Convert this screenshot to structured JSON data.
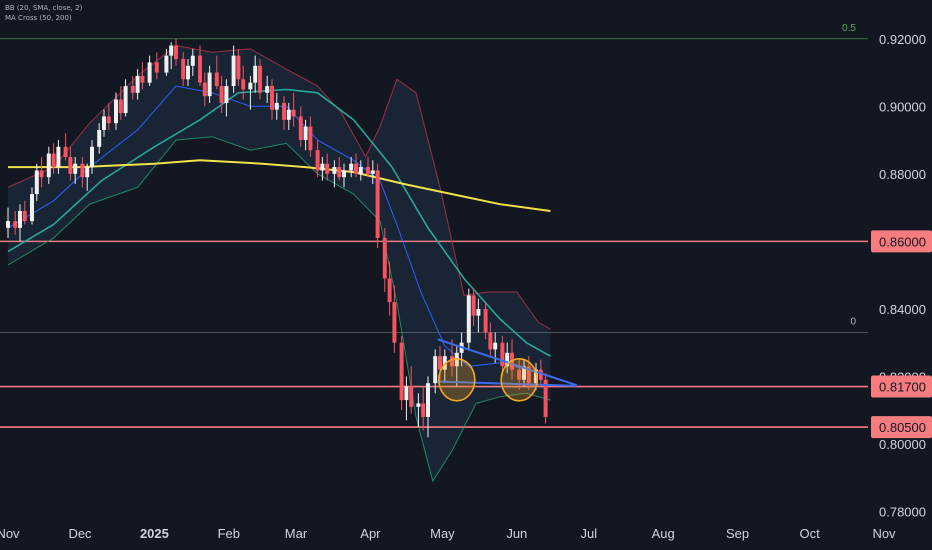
{
  "legend": {
    "indicator_bb": "BB (20, SMA, close, 2)",
    "indicator_ma": "MA Cross (50, 200)"
  },
  "colors": {
    "background": "#131722",
    "up_candle": "#f0f0f0",
    "down_candle": "#f7525f",
    "bb_band": "#9c2f44",
    "bb_basis": "#2962ff",
    "ma50": "#26a69a",
    "ma200": "#f2e24a",
    "trendline": "#3b6cf0",
    "level_line": "#f77c80",
    "fib_line": "#4caf50",
    "circle": "#f5a623",
    "axis_text": "#d1d4dc"
  },
  "chart_data": {
    "type": "candlestick",
    "symbol_note": "",
    "x_axis": {
      "labels": [
        "Nov",
        "Dec",
        "2025",
        "Feb",
        "Mar",
        "Apr",
        "May",
        "Jun",
        "Jul",
        "Aug",
        "Sep",
        "Oct",
        "Nov"
      ],
      "start": "2024-11-01",
      "end": "2025-11-01"
    },
    "y_axis": {
      "ticks": [
        0.78,
        0.8,
        0.82,
        0.84,
        0.86,
        0.88,
        0.9,
        0.92
      ],
      "tick_labels": [
        "0.78000",
        "0.80000",
        "0.82000",
        "0.84000",
        "0.86000",
        "0.88000",
        "0.90000",
        "0.92000"
      ],
      "range": [
        0.776,
        0.93
      ]
    },
    "horizontal_levels": [
      {
        "label": "0.86000",
        "value": 0.86,
        "style": "highlight"
      },
      {
        "label": "0.81700",
        "value": 0.817,
        "style": "highlight"
      },
      {
        "label": "0.80500",
        "value": 0.805,
        "style": "highlight"
      }
    ],
    "fib_levels": [
      {
        "label": "0.5",
        "value": 0.92
      },
      {
        "label": "0",
        "value": 0.833
      }
    ],
    "trendlines": [
      {
        "from": [
          "2025-04-29",
          0.831
        ],
        "to": [
          "2025-06-26",
          0.8174
        ]
      },
      {
        "from": [
          "2025-04-29",
          0.8185
        ],
        "to": [
          "2025-06-26",
          0.8172
        ]
      }
    ],
    "circles": [
      {
        "center": [
          "2025-05-07",
          0.819
        ]
      },
      {
        "center": [
          "2025-06-02",
          0.819
        ]
      }
    ],
    "ma200": [
      [
        "2024-11-01",
        0.882
      ],
      [
        "2024-12-01",
        0.882
      ],
      [
        "2025-01-01",
        0.883
      ],
      [
        "2025-01-20",
        0.884
      ],
      [
        "2025-02-15",
        0.883
      ],
      [
        "2025-03-05",
        0.882
      ],
      [
        "2025-03-25",
        0.8805
      ],
      [
        "2025-04-15",
        0.877
      ],
      [
        "2025-05-05",
        0.874
      ],
      [
        "2025-05-25",
        0.871
      ],
      [
        "2025-06-15",
        0.869
      ]
    ],
    "ma50": [
      [
        "2024-11-01",
        0.857
      ],
      [
        "2024-11-20",
        0.865
      ],
      [
        "2024-12-10",
        0.878
      ],
      [
        "2025-01-01",
        0.888
      ],
      [
        "2025-01-20",
        0.896
      ],
      [
        "2025-02-05",
        0.904
      ],
      [
        "2025-02-25",
        0.905
      ],
      [
        "2025-03-10",
        0.904
      ],
      [
        "2025-03-25",
        0.896
      ],
      [
        "2025-04-10",
        0.882
      ],
      [
        "2025-04-25",
        0.864
      ],
      [
        "2025-05-10",
        0.849
      ],
      [
        "2025-05-25",
        0.837
      ],
      [
        "2025-06-05",
        0.83
      ],
      [
        "2025-06-15",
        0.826
      ]
    ],
    "bb_basis": [
      [
        "2024-11-01",
        0.864
      ],
      [
        "2024-11-20",
        0.872
      ],
      [
        "2024-12-05",
        0.882
      ],
      [
        "2024-12-25",
        0.893
      ],
      [
        "2025-01-10",
        0.906
      ],
      [
        "2025-01-25",
        0.904
      ],
      [
        "2025-02-10",
        0.9
      ],
      [
        "2025-02-25",
        0.9
      ],
      [
        "2025-03-10",
        0.89
      ],
      [
        "2025-03-25",
        0.884
      ],
      [
        "2025-04-05",
        0.878
      ],
      [
        "2025-04-12",
        0.865
      ],
      [
        "2025-04-22",
        0.845
      ],
      [
        "2025-05-02",
        0.829
      ],
      [
        "2025-05-12",
        0.823
      ],
      [
        "2025-05-25",
        0.824
      ],
      [
        "2025-06-05",
        0.822
      ],
      [
        "2025-06-15",
        0.82
      ]
    ],
    "bb_upper": [
      [
        "2024-11-01",
        0.876
      ],
      [
        "2024-11-20",
        0.882
      ],
      [
        "2024-12-05",
        0.895
      ],
      [
        "2024-12-25",
        0.909
      ],
      [
        "2025-01-10",
        0.918
      ],
      [
        "2025-01-25",
        0.916
      ],
      [
        "2025-02-10",
        0.917
      ],
      [
        "2025-02-25",
        0.911
      ],
      [
        "2025-03-10",
        0.906
      ],
      [
        "2025-03-20",
        0.898
      ],
      [
        "2025-03-30",
        0.885
      ],
      [
        "2025-04-05",
        0.894
      ],
      [
        "2025-04-12",
        0.908
      ],
      [
        "2025-04-20",
        0.904
      ],
      [
        "2025-04-30",
        0.876
      ],
      [
        "2025-05-10",
        0.844
      ],
      [
        "2025-05-20",
        0.845
      ],
      [
        "2025-06-01",
        0.845
      ],
      [
        "2025-06-10",
        0.836
      ],
      [
        "2025-06-15",
        0.834
      ]
    ],
    "bb_lower": [
      [
        "2024-11-01",
        0.853
      ],
      [
        "2024-11-20",
        0.861
      ],
      [
        "2024-12-05",
        0.871
      ],
      [
        "2024-12-25",
        0.876
      ],
      [
        "2025-01-10",
        0.89
      ],
      [
        "2025-01-25",
        0.891
      ],
      [
        "2025-02-10",
        0.887
      ],
      [
        "2025-02-25",
        0.889
      ],
      [
        "2025-03-10",
        0.88
      ],
      [
        "2025-03-25",
        0.874
      ],
      [
        "2025-04-05",
        0.866
      ],
      [
        "2025-04-12",
        0.842
      ],
      [
        "2025-04-20",
        0.808
      ],
      [
        "2025-04-27",
        0.789
      ],
      [
        "2025-05-05",
        0.798
      ],
      [
        "2025-05-15",
        0.812
      ],
      [
        "2025-05-25",
        0.814
      ],
      [
        "2025-06-05",
        0.815
      ],
      [
        "2025-06-15",
        0.813
      ]
    ],
    "candles": [
      [
        "2024-11-01",
        0.864,
        0.87,
        0.861,
        0.866
      ],
      [
        "2024-11-04",
        0.866,
        0.869,
        0.862,
        0.864
      ],
      [
        "2024-11-06",
        0.864,
        0.871,
        0.86,
        0.869
      ],
      [
        "2024-11-08",
        0.869,
        0.872,
        0.865,
        0.866
      ],
      [
        "2024-11-11",
        0.866,
        0.876,
        0.865,
        0.874
      ],
      [
        "2024-11-13",
        0.874,
        0.883,
        0.872,
        0.881
      ],
      [
        "2024-11-15",
        0.881,
        0.885,
        0.876,
        0.879
      ],
      [
        "2024-11-18",
        0.879,
        0.888,
        0.877,
        0.886
      ],
      [
        "2024-11-20",
        0.886,
        0.889,
        0.88,
        0.882
      ],
      [
        "2024-11-22",
        0.882,
        0.89,
        0.88,
        0.888
      ],
      [
        "2024-11-25",
        0.888,
        0.892,
        0.884,
        0.885
      ],
      [
        "2024-11-27",
        0.885,
        0.888,
        0.878,
        0.88
      ],
      [
        "2024-11-29",
        0.88,
        0.885,
        0.877,
        0.883
      ],
      [
        "2024-12-02",
        0.883,
        0.885,
        0.876,
        0.879
      ],
      [
        "2024-12-04",
        0.879,
        0.883,
        0.875,
        0.882
      ],
      [
        "2024-12-06",
        0.882,
        0.89,
        0.88,
        0.888
      ],
      [
        "2024-12-09",
        0.888,
        0.895,
        0.886,
        0.893
      ],
      [
        "2024-12-11",
        0.893,
        0.899,
        0.891,
        0.897
      ],
      [
        "2024-12-13",
        0.897,
        0.901,
        0.893,
        0.895
      ],
      [
        "2024-12-16",
        0.895,
        0.904,
        0.893,
        0.902
      ],
      [
        "2024-12-18",
        0.902,
        0.906,
        0.896,
        0.898
      ],
      [
        "2024-12-20",
        0.898,
        0.908,
        0.897,
        0.906
      ],
      [
        "2024-12-23",
        0.906,
        0.909,
        0.902,
        0.904
      ],
      [
        "2024-12-25",
        0.904,
        0.911,
        0.902,
        0.909
      ],
      [
        "2024-12-27",
        0.909,
        0.913,
        0.905,
        0.907
      ],
      [
        "2024-12-30",
        0.907,
        0.915,
        0.906,
        0.913
      ],
      [
        "2025-01-02",
        0.913,
        0.916,
        0.908,
        0.91
      ],
      [
        "2025-01-06",
        0.91,
        0.917,
        0.909,
        0.915
      ],
      [
        "2025-01-08",
        0.915,
        0.919,
        0.911,
        0.918
      ],
      [
        "2025-01-10",
        0.918,
        0.92,
        0.912,
        0.914
      ],
      [
        "2025-01-13",
        0.914,
        0.916,
        0.906,
        0.908
      ],
      [
        "2025-01-15",
        0.908,
        0.914,
        0.906,
        0.912
      ],
      [
        "2025-01-17",
        0.912,
        0.917,
        0.909,
        0.915
      ],
      [
        "2025-01-20",
        0.915,
        0.918,
        0.906,
        0.907
      ],
      [
        "2025-01-22",
        0.907,
        0.91,
        0.9,
        0.903
      ],
      [
        "2025-01-24",
        0.903,
        0.912,
        0.901,
        0.91
      ],
      [
        "2025-01-27",
        0.91,
        0.915,
        0.905,
        0.906
      ],
      [
        "2025-01-29",
        0.906,
        0.909,
        0.898,
        0.901
      ],
      [
        "2025-01-31",
        0.901,
        0.908,
        0.897,
        0.906
      ],
      [
        "2025-02-03",
        0.906,
        0.918,
        0.904,
        0.915
      ],
      [
        "2025-02-05",
        0.915,
        0.917,
        0.906,
        0.908
      ],
      [
        "2025-02-07",
        0.908,
        0.912,
        0.902,
        0.905
      ],
      [
        "2025-02-10",
        0.905,
        0.909,
        0.899,
        0.907
      ],
      [
        "2025-02-12",
        0.907,
        0.915,
        0.904,
        0.912
      ],
      [
        "2025-02-14",
        0.912,
        0.914,
        0.902,
        0.904
      ],
      [
        "2025-02-17",
        0.904,
        0.909,
        0.901,
        0.906
      ],
      [
        "2025-02-19",
        0.906,
        0.908,
        0.896,
        0.899
      ],
      [
        "2025-02-21",
        0.899,
        0.904,
        0.896,
        0.901
      ],
      [
        "2025-02-24",
        0.901,
        0.903,
        0.893,
        0.896
      ],
      [
        "2025-02-26",
        0.896,
        0.901,
        0.893,
        0.899
      ],
      [
        "2025-02-28",
        0.899,
        0.904,
        0.894,
        0.897
      ],
      [
        "2025-03-03",
        0.897,
        0.9,
        0.888,
        0.89
      ],
      [
        "2025-03-05",
        0.89,
        0.896,
        0.887,
        0.894
      ],
      [
        "2025-03-07",
        0.894,
        0.897,
        0.885,
        0.887
      ],
      [
        "2025-03-10",
        0.887,
        0.89,
        0.879,
        0.881
      ],
      [
        "2025-03-12",
        0.881,
        0.885,
        0.878,
        0.883
      ],
      [
        "2025-03-14",
        0.883,
        0.886,
        0.878,
        0.88
      ],
      [
        "2025-03-17",
        0.88,
        0.884,
        0.876,
        0.882
      ],
      [
        "2025-03-19",
        0.882,
        0.885,
        0.878,
        0.879
      ],
      [
        "2025-03-21",
        0.879,
        0.883,
        0.876,
        0.881
      ],
      [
        "2025-03-24",
        0.881,
        0.885,
        0.879,
        0.883
      ],
      [
        "2025-03-26",
        0.883,
        0.886,
        0.879,
        0.88
      ],
      [
        "2025-03-28",
        0.88,
        0.884,
        0.878,
        0.882
      ],
      [
        "2025-03-31",
        0.882,
        0.885,
        0.879,
        0.88
      ],
      [
        "2025-04-02",
        0.88,
        0.884,
        0.877,
        0.881
      ],
      [
        "2025-04-04",
        0.881,
        0.883,
        0.858,
        0.861
      ],
      [
        "2025-04-07",
        0.861,
        0.864,
        0.845,
        0.849
      ],
      [
        "2025-04-09",
        0.849,
        0.854,
        0.838,
        0.842
      ],
      [
        "2025-04-11",
        0.842,
        0.847,
        0.827,
        0.83
      ],
      [
        "2025-04-14",
        0.83,
        0.832,
        0.81,
        0.813
      ],
      [
        "2025-04-16",
        0.813,
        0.82,
        0.807,
        0.817
      ],
      [
        "2025-04-18",
        0.817,
        0.823,
        0.809,
        0.811
      ],
      [
        "2025-04-21",
        0.811,
        0.815,
        0.805,
        0.812
      ],
      [
        "2025-04-23",
        0.812,
        0.817,
        0.804,
        0.808
      ],
      [
        "2025-04-25",
        0.808,
        0.82,
        0.802,
        0.818
      ],
      [
        "2025-04-28",
        0.818,
        0.828,
        0.815,
        0.826
      ],
      [
        "2025-04-30",
        0.826,
        0.829,
        0.819,
        0.822
      ],
      [
        "2025-05-02",
        0.822,
        0.828,
        0.818,
        0.826
      ],
      [
        "2025-05-05",
        0.826,
        0.831,
        0.82,
        0.823
      ],
      [
        "2025-05-07",
        0.823,
        0.829,
        0.817,
        0.827
      ],
      [
        "2025-05-09",
        0.827,
        0.833,
        0.823,
        0.83
      ],
      [
        "2025-05-12",
        0.83,
        0.846,
        0.828,
        0.844
      ],
      [
        "2025-05-14",
        0.844,
        0.846,
        0.835,
        0.838
      ],
      [
        "2025-05-16",
        0.838,
        0.843,
        0.833,
        0.84
      ],
      [
        "2025-05-19",
        0.84,
        0.842,
        0.831,
        0.833
      ],
      [
        "2025-05-21",
        0.833,
        0.836,
        0.826,
        0.828
      ],
      [
        "2025-05-23",
        0.828,
        0.833,
        0.824,
        0.83
      ],
      [
        "2025-05-26",
        0.83,
        0.832,
        0.82,
        0.823
      ],
      [
        "2025-05-28",
        0.823,
        0.83,
        0.821,
        0.827
      ],
      [
        "2025-05-30",
        0.827,
        0.831,
        0.819,
        0.822
      ],
      [
        "2025-06-02",
        0.822,
        0.825,
        0.816,
        0.819
      ],
      [
        "2025-06-04",
        0.819,
        0.825,
        0.817,
        0.823
      ],
      [
        "2025-06-06",
        0.823,
        0.826,
        0.816,
        0.818
      ],
      [
        "2025-06-09",
        0.818,
        0.824,
        0.816,
        0.822
      ],
      [
        "2025-06-11",
        0.822,
        0.825,
        0.817,
        0.819
      ],
      [
        "2025-06-13",
        0.819,
        0.821,
        0.806,
        0.808
      ]
    ]
  }
}
